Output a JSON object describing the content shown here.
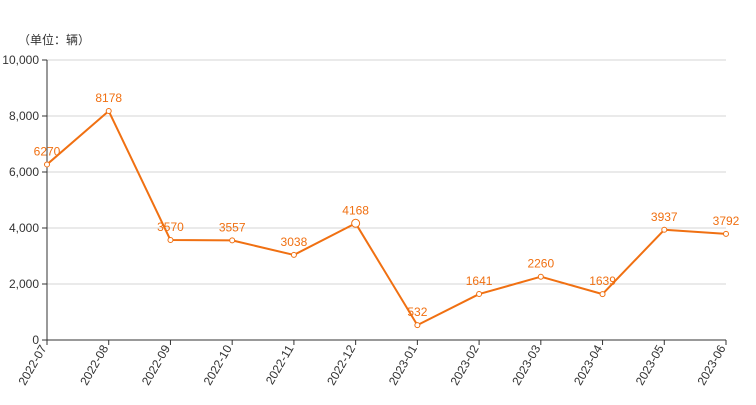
{
  "colors": {
    "line": "#f07012",
    "grid": "#d4d4d4",
    "axis": "#333333",
    "tick_text": "#333333",
    "label_text": "#f07012",
    "background": "#ffffff"
  },
  "chart_data": {
    "type": "line",
    "title": "",
    "unit_label": "（单位：辆）",
    "xlabel": "",
    "ylabel": "",
    "categories": [
      "2022-07",
      "2022-08",
      "2022-09",
      "2022-10",
      "2022-11",
      "2022-12",
      "2023-01",
      "2023-02",
      "2023-03",
      "2023-04",
      "2023-05",
      "2023-06"
    ],
    "series": [
      {
        "values": [
          6270,
          8178,
          3570,
          3557,
          3038,
          4168,
          532,
          1641,
          2260,
          1639,
          3937,
          3792
        ]
      }
    ],
    "data_labels": [
      "6270",
      "8178",
      "3570",
      "3557",
      "3038",
      "4168",
      "532",
      "1641",
      "2260",
      "1639",
      "3937",
      "3792"
    ],
    "ylim": [
      0,
      10000
    ],
    "yticks": [
      0,
      2000,
      4000,
      6000,
      8000,
      10000
    ],
    "ytick_labels": [
      "0",
      "2,000",
      "4,000",
      "6,000",
      "8,000",
      "10,000"
    ],
    "grid": true,
    "legend": "none"
  }
}
